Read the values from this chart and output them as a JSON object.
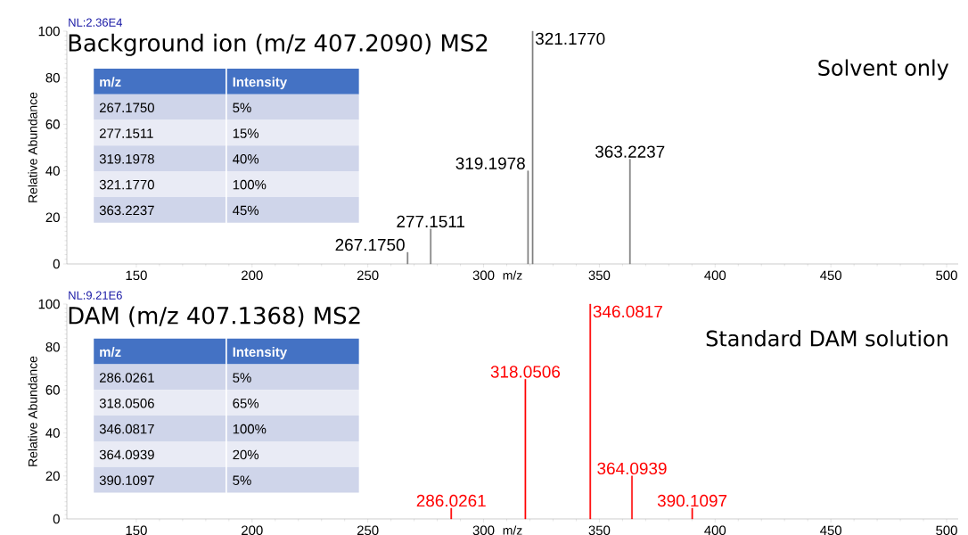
{
  "chart_data": [
    {
      "type": "bar",
      "title": "Background ion (m/z 407.2090) MS2",
      "xlabel": "m/z",
      "ylabel": "Relative Abundance",
      "x": [
        267.175,
        277.1511,
        319.1978,
        321.177,
        363.2237
      ],
      "values": [
        5,
        15,
        40,
        100,
        45
      ],
      "color": "#808080",
      "xlim": [
        120,
        505
      ],
      "xticks": [
        150,
        200,
        250,
        300,
        350,
        400,
        450,
        500
      ],
      "ylim": [
        0,
        100
      ],
      "yticks": [
        0,
        20,
        40,
        60,
        80,
        100
      ],
      "annotations": [
        "NL:2.36E4",
        "Solvent only",
        "Intensity",
        "5%",
        "15%",
        "40%",
        "100%",
        "45%",
        {
          "text": "267.1750",
          "x": 267.175,
          "y": 5
        },
        {
          "text": "277.1511",
          "x": 277.1511,
          "y": 15
        },
        {
          "text": "319.1978",
          "x": 319.1978,
          "y": 40
        },
        {
          "text": "321.1770",
          "x": 321.177,
          "y": 100
        },
        {
          "text": "363.2237",
          "x": 363.2237,
          "y": 45
        }
      ]
    },
    {
      "type": "bar",
      "title": "DAM (m/z 407.1368) MS2",
      "xlabel": "m/z",
      "ylabel": "Relative Abundance",
      "x": [
        286.0261,
        318.0506,
        346.0817,
        364.0939,
        390.1097
      ],
      "values": [
        5,
        65,
        100,
        20,
        5
      ],
      "color": "#ff0000",
      "xlim": [
        120,
        505
      ],
      "xticks": [
        150,
        200,
        250,
        300,
        350,
        400,
        450,
        500
      ],
      "ylim": [
        0,
        100
      ],
      "yticks": [
        0,
        20,
        40,
        60,
        80,
        100
      ],
      "annotations": [
        "NL:9.21E6",
        "Standard DAM solution",
        "Intensity",
        "5%",
        "65%",
        "100%",
        "20%",
        "5%",
        {
          "text": "286.0261",
          "x": 286.0261,
          "y": 5
        },
        {
          "text": "318.0506",
          "x": 318.0506,
          "y": 65
        },
        {
          "text": "346.0817",
          "x": 346.0817,
          "y": 100
        },
        {
          "text": "364.0939",
          "x": 364.0939,
          "y": 20
        },
        {
          "text": "390.1097",
          "x": 390.1097,
          "y": 5
        }
      ]
    }
  ]
}
